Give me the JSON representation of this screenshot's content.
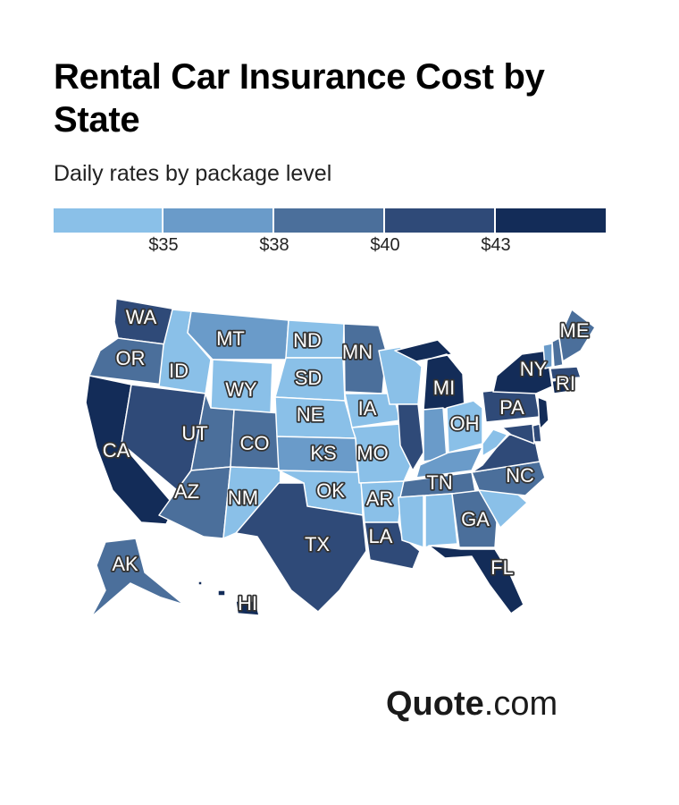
{
  "title": "Rental Car Insurance Cost by State",
  "subtitle": "Daily rates by package level",
  "legend": {
    "colors": [
      "#8ac0e8",
      "#6a9bc9",
      "#4b6f9b",
      "#2f4a78",
      "#132c58"
    ],
    "ticks": [
      "$35",
      "$38",
      "$40",
      "$43"
    ]
  },
  "brand": {
    "name": "Quote",
    "suffix": ".com"
  },
  "chart_data": {
    "type": "choropleth",
    "region": "United States",
    "color_bins": [
      {
        "level": 1,
        "range": "< $35",
        "color": "#8ac0e8"
      },
      {
        "level": 2,
        "range": "$35 – $38",
        "color": "#6a9bc9"
      },
      {
        "level": 3,
        "range": "$38 – $40",
        "color": "#4b6f9b"
      },
      {
        "level": 4,
        "range": "$40 – $43",
        "color": "#2f4a78"
      },
      {
        "level": 5,
        "range": "> $43",
        "color": "#132c58"
      }
    ],
    "states": [
      {
        "code": "WA",
        "level": 4
      },
      {
        "code": "OR",
        "level": 3
      },
      {
        "code": "CA",
        "level": 5
      },
      {
        "code": "ID",
        "level": 1
      },
      {
        "code": "NV",
        "level": 4
      },
      {
        "code": "MT",
        "level": 2
      },
      {
        "code": "WY",
        "level": 1
      },
      {
        "code": "UT",
        "level": 3
      },
      {
        "code": "AZ",
        "level": 3
      },
      {
        "code": "CO",
        "level": 3
      },
      {
        "code": "NM",
        "level": 1
      },
      {
        "code": "ND",
        "level": 1
      },
      {
        "code": "SD",
        "level": 1
      },
      {
        "code": "NE",
        "level": 1
      },
      {
        "code": "KS",
        "level": 2
      },
      {
        "code": "OK",
        "level": 1
      },
      {
        "code": "TX",
        "level": 4
      },
      {
        "code": "MN",
        "level": 3
      },
      {
        "code": "IA",
        "level": 1
      },
      {
        "code": "MO",
        "level": 1
      },
      {
        "code": "AR",
        "level": 1
      },
      {
        "code": "LA",
        "level": 4
      },
      {
        "code": "WI",
        "level": 1
      },
      {
        "code": "IL",
        "level": 4
      },
      {
        "code": "MI",
        "level": 5
      },
      {
        "code": "IN",
        "level": 2
      },
      {
        "code": "OH",
        "level": 1
      },
      {
        "code": "KY",
        "level": 2
      },
      {
        "code": "TN",
        "level": 3
      },
      {
        "code": "MS",
        "level": 1
      },
      {
        "code": "AL",
        "level": 1
      },
      {
        "code": "GA",
        "level": 3
      },
      {
        "code": "FL",
        "level": 5
      },
      {
        "code": "SC",
        "level": 1
      },
      {
        "code": "NC",
        "level": 3
      },
      {
        "code": "VA",
        "level": 4
      },
      {
        "code": "WV",
        "level": 1
      },
      {
        "code": "PA",
        "level": 4
      },
      {
        "code": "NY",
        "level": 5
      },
      {
        "code": "NJ",
        "level": 5
      },
      {
        "code": "DE",
        "level": 4
      },
      {
        "code": "MD",
        "level": 4
      },
      {
        "code": "CT",
        "level": 5
      },
      {
        "code": "RI",
        "level": 4
      },
      {
        "code": "MA",
        "level": 4
      },
      {
        "code": "VT",
        "level": 2
      },
      {
        "code": "NH",
        "level": 3
      },
      {
        "code": "ME",
        "level": 3
      },
      {
        "code": "AK",
        "level": 3
      },
      {
        "code": "HI",
        "level": 5
      }
    ]
  }
}
